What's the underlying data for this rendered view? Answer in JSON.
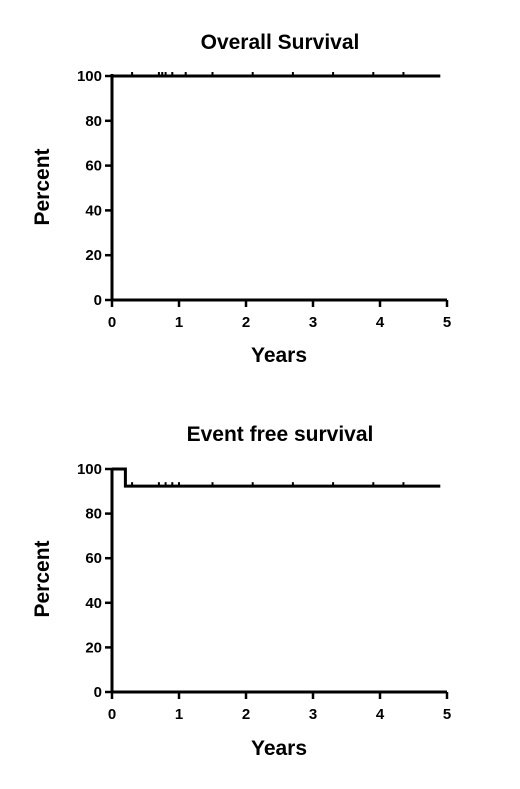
{
  "chart_data": [
    {
      "type": "line",
      "subtype": "kaplan-meier",
      "title": "Overall Survival",
      "xlabel": "Years",
      "ylabel": "Percent",
      "xlim": [
        0,
        5
      ],
      "ylim": [
        0,
        100
      ],
      "xticks": [
        0,
        1,
        2,
        3,
        4,
        5
      ],
      "yticks": [
        0,
        20,
        40,
        60,
        80,
        100
      ],
      "grid": false,
      "legend": "none",
      "series": [
        {
          "steps": [
            [
              0,
              100
            ],
            [
              4.9,
              100
            ]
          ],
          "censored": [
            [
              0.3,
              100
            ],
            [
              0.7,
              100
            ],
            [
              0.75,
              100
            ],
            [
              0.8,
              100
            ],
            [
              0.9,
              100
            ],
            [
              1.1,
              100
            ],
            [
              1.5,
              100
            ],
            [
              2.1,
              100
            ],
            [
              2.7,
              100
            ],
            [
              3.3,
              100
            ],
            [
              3.9,
              100
            ],
            [
              4.35,
              100
            ]
          ]
        }
      ]
    },
    {
      "type": "line",
      "subtype": "kaplan-meier",
      "title": "Event free survival",
      "xlabel": "Years",
      "ylabel": "Percent",
      "xlim": [
        0,
        5
      ],
      "ylim": [
        0,
        100
      ],
      "xticks": [
        0,
        1,
        2,
        3,
        4,
        5
      ],
      "yticks": [
        0,
        20,
        40,
        60,
        80,
        100
      ],
      "grid": false,
      "legend": "none",
      "series": [
        {
          "steps": [
            [
              0,
              100
            ],
            [
              0.2,
              92.3
            ],
            [
              4.9,
              92.3
            ]
          ],
          "censored": [
            [
              0.3,
              92.3
            ],
            [
              0.7,
              92.3
            ],
            [
              0.8,
              92.3
            ],
            [
              0.9,
              92.3
            ],
            [
              1.0,
              92.3
            ],
            [
              1.5,
              92.3
            ],
            [
              2.1,
              92.3
            ],
            [
              2.7,
              92.3
            ],
            [
              3.3,
              92.3
            ],
            [
              3.9,
              92.3
            ],
            [
              4.35,
              92.3
            ]
          ]
        }
      ]
    }
  ]
}
